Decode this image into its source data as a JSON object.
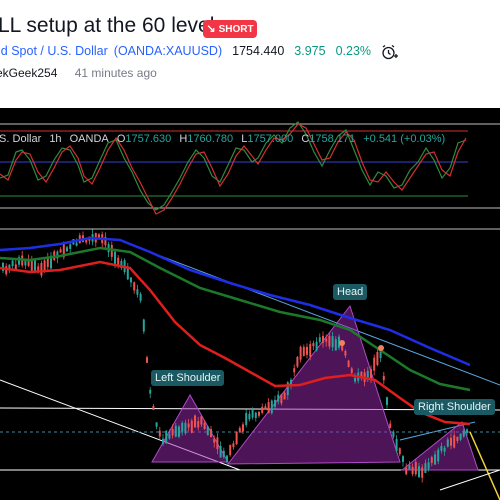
{
  "header": {
    "title": "LL setup at the 60 level",
    "badge": {
      "label": "SHORT",
      "icon": "arrow-down-right-icon",
      "color": "#f23645"
    },
    "symbol": {
      "name": "ld Spot / U.S. Dollar",
      "code": "OANDA:XAUUSD",
      "price": "1754.440",
      "change": "3.975",
      "change_pct": "0.23%"
    },
    "alarm_icon": "alarm-clock-plus-icon",
    "author": "ekGeek254",
    "time": "41 minutes ago"
  },
  "chart": {
    "legend": {
      "symbol": ".S. Dollar",
      "interval": "1h",
      "broker": "OANDA",
      "o_label": "O",
      "o_val": "1757.630",
      "h_label": "H",
      "h_val": "1760.780",
      "l_label": "L",
      "l_val": "1757.000",
      "c_label": "C",
      "c_val": "1758.171",
      "change": "+0.541 (+0.03%)"
    },
    "annotations": {
      "head": "Head",
      "left_shoulder": "Left Shoulder",
      "right_shoulder": "Right Shoulder"
    },
    "colors": {
      "up": "#26a69a",
      "down": "#ef5350",
      "pattern": "#9c27b0",
      "ma_fast": "#e01e1e",
      "ma_mid": "#1b7a2a",
      "ma_slow": "#1f2ee6"
    }
  }
}
